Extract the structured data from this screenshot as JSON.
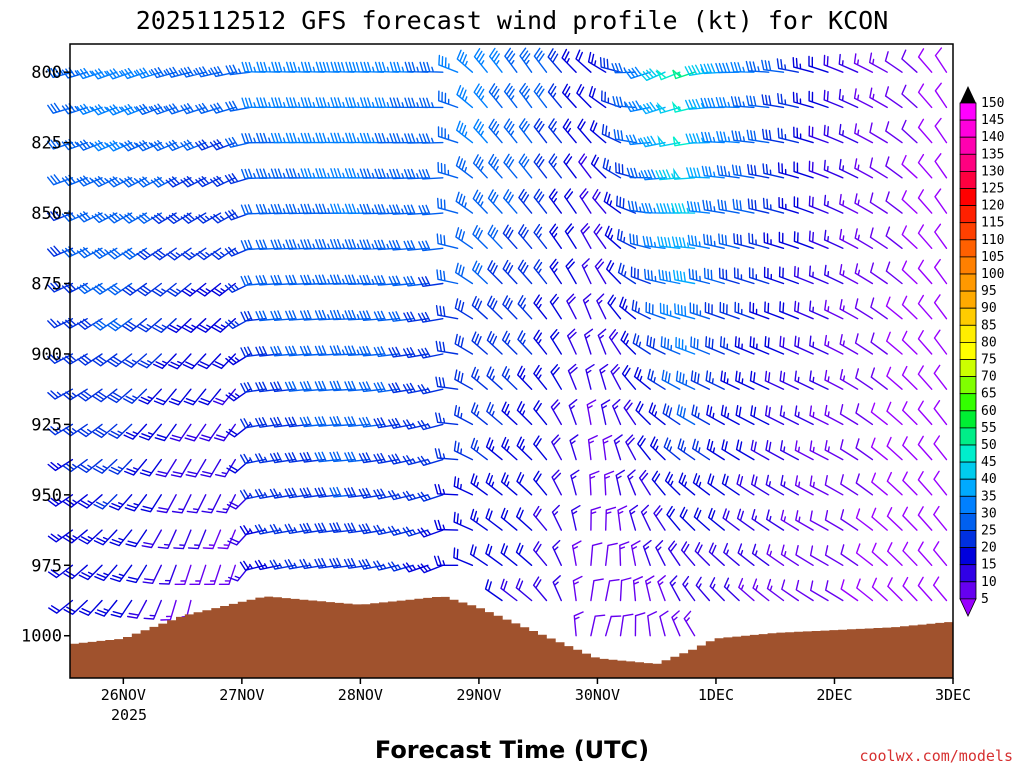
{
  "chart_data": {
    "type": "wind-barb-profile",
    "title": "2025112512 GFS forecast wind profile (kt) for KCON",
    "xlabel": "Forecast Time (UTC)",
    "credit": "coolwx.com/models",
    "x_ticks": [
      "26NOV",
      "27NOV",
      "28NOV",
      "29NOV",
      "30NOV",
      "1DEC",
      "2DEC",
      "3DEC"
    ],
    "x_sublabel": "2025",
    "x_range_days": [
      -0.45,
      7.0
    ],
    "y_ticks": [
      "800",
      "825",
      "850",
      "875",
      "900",
      "925",
      "950",
      "975",
      "1000"
    ],
    "y_range_hpa": [
      790,
      1015
    ],
    "barb_levels_hpa": [
      800,
      812.5,
      825,
      837.5,
      850,
      862.5,
      875,
      887.5,
      900,
      912.5,
      925,
      937.5,
      950,
      962.5,
      975,
      987.5,
      1000
    ],
    "barb_interval_hours": 3,
    "keyframes": [
      {
        "t": -0.45,
        "surface_hpa": 1003,
        "speed_top": 33,
        "speed_bottom": 20,
        "dir_top": 255,
        "dir_bottom": 230
      },
      {
        "t": 0.0,
        "surface_hpa": 1001,
        "speed_top": 38,
        "speed_bottom": 22,
        "dir_top": 250,
        "dir_bottom": 215
      },
      {
        "t": 0.5,
        "surface_hpa": 993,
        "speed_top": 34,
        "speed_bottom": 12,
        "dir_top": 255,
        "dir_bottom": 190
      },
      {
        "t": 1.0,
        "surface_hpa": 988,
        "speed_top": 32,
        "speed_bottom": 10,
        "dir_top": 258,
        "dir_bottom": 190
      },
      {
        "t": 1.2,
        "surface_hpa": 986,
        "speed_top": 36,
        "speed_bottom": 22,
        "dir_top": 272,
        "dir_bottom": 255
      },
      {
        "t": 2.0,
        "surface_hpa": 989,
        "speed_top": 38,
        "speed_bottom": 28,
        "dir_top": 272,
        "dir_bottom": 262
      },
      {
        "t": 2.7,
        "surface_hpa": 986,
        "speed_top": 34,
        "speed_bottom": 22,
        "dir_top": 272,
        "dir_bottom": 245
      },
      {
        "t": 3.0,
        "surface_hpa": 990,
        "speed_top": 38,
        "speed_bottom": 20,
        "dir_top": 320,
        "dir_bottom": 300
      },
      {
        "t": 3.5,
        "surface_hpa": 999,
        "speed_top": 33,
        "speed_bottom": 18,
        "dir_top": 325,
        "dir_bottom": 310
      },
      {
        "t": 4.0,
        "surface_hpa": 1008,
        "speed_top": 20,
        "speed_bottom": 10,
        "dir_top": 310,
        "dir_bottom": 20
      },
      {
        "t": 4.5,
        "surface_hpa": 1010,
        "speed_top": 42,
        "speed_bottom": 12,
        "dir_top": 245,
        "dir_bottom": 350
      },
      {
        "t": 4.8,
        "surface_hpa": 1005,
        "speed_top": 58,
        "speed_bottom": 14,
        "dir_top": 250,
        "dir_bottom": 330
      },
      {
        "t": 5.0,
        "surface_hpa": 1001,
        "speed_top": 42,
        "speed_bottom": 16,
        "dir_top": 265,
        "dir_bottom": 320
      },
      {
        "t": 5.5,
        "surface_hpa": 999,
        "speed_top": 32,
        "speed_bottom": 12,
        "dir_top": 275,
        "dir_bottom": 310
      },
      {
        "t": 6.0,
        "surface_hpa": 998,
        "speed_top": 20,
        "speed_bottom": 10,
        "dir_top": 290,
        "dir_bottom": 300
      },
      {
        "t": 6.5,
        "surface_hpa": 997,
        "speed_top": 12,
        "speed_bottom": 8,
        "dir_top": 300,
        "dir_bottom": 315
      },
      {
        "t": 7.0,
        "surface_hpa": 995,
        "speed_top": 8,
        "speed_bottom": 8,
        "dir_top": 330,
        "dir_bottom": 320
      }
    ],
    "colorbar": {
      "labels": [
        "150",
        "145",
        "140",
        "135",
        "130",
        "125",
        "120",
        "115",
        "110",
        "105",
        "100",
        "95",
        "90",
        "85",
        "80",
        "75",
        "70",
        "65",
        "60",
        "55",
        "50",
        "45",
        "40",
        "35",
        "30",
        "25",
        "20",
        "15",
        "10",
        "5"
      ],
      "colors": [
        "#ff00ff",
        "#ff00dd",
        "#ff00b0",
        "#ff0080",
        "#ff0040",
        "#ff0000",
        "#ff2000",
        "#ff4000",
        "#ff6000",
        "#ff8000",
        "#ff9900",
        "#ffaa00",
        "#ffcc00",
        "#ffee00",
        "#ffff00",
        "#ccff00",
        "#80ff00",
        "#33ff00",
        "#00ee33",
        "#00ee88",
        "#00eecc",
        "#00ccee",
        "#00aaff",
        "#0080ff",
        "#0060f0",
        "#0030e0",
        "#0000dd",
        "#3000e6",
        "#6600f0",
        "#9900ff"
      ],
      "max_color": "#000000"
    },
    "terrain_color": "#a0522d"
  }
}
